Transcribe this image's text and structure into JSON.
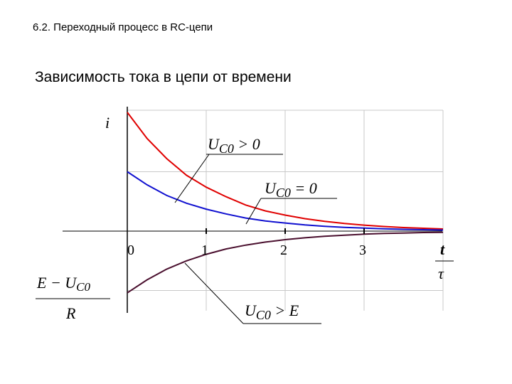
{
  "header": "6.2. Переходный процесс в RC-цепи",
  "subtitle": "Зависимость тока в цепи от времени",
  "colors": {
    "upper": "#e00000",
    "middle": "#1010d0",
    "lower": "#4a0f2e",
    "grid": "#c8c8c8"
  },
  "chart_data": {
    "type": "line",
    "title": "",
    "xlabel": {
      "numerator": "t",
      "denominator": "τ"
    },
    "ylabel": "i",
    "x_ticks": [
      "0",
      "1",
      "2",
      "3"
    ],
    "xlim": [
      0,
      4
    ],
    "ylim": [
      -1,
      1.0
    ],
    "grid": true,
    "y_axis_marker": {
      "numerator": "E − U",
      "numerator_sub": "C0",
      "denominator": "R"
    },
    "x": [
      0,
      0.25,
      0.5,
      0.75,
      1,
      1.25,
      1.5,
      1.75,
      2,
      2.25,
      2.5,
      2.75,
      3,
      3.25,
      3.5,
      3.75,
      4
    ],
    "series": [
      {
        "label_main": "U",
        "label_sub": "C0",
        "label_rest": " > 0",
        "color_key": "upper",
        "values": [
          1.0,
          0.78,
          0.61,
          0.47,
          0.37,
          0.29,
          0.22,
          0.17,
          0.135,
          0.105,
          0.082,
          0.064,
          0.05,
          0.039,
          0.03,
          0.024,
          0.018
        ]
      },
      {
        "label_main": "U",
        "label_sub": "C0",
        "label_rest": " = 0",
        "color_key": "middle",
        "values": [
          0.5,
          0.39,
          0.3,
          0.235,
          0.185,
          0.145,
          0.11,
          0.085,
          0.068,
          0.052,
          0.041,
          0.032,
          0.025,
          0.019,
          0.015,
          0.012,
          0.009
        ]
      },
      {
        "label_main": "U",
        "label_sub": "C0",
        "label_rest": " > E",
        "color_key": "lower",
        "values": [
          -0.52,
          -0.41,
          -0.32,
          -0.25,
          -0.195,
          -0.15,
          -0.118,
          -0.092,
          -0.072,
          -0.056,
          -0.043,
          -0.034,
          -0.026,
          -0.02,
          -0.016,
          -0.012,
          -0.01
        ]
      }
    ]
  }
}
